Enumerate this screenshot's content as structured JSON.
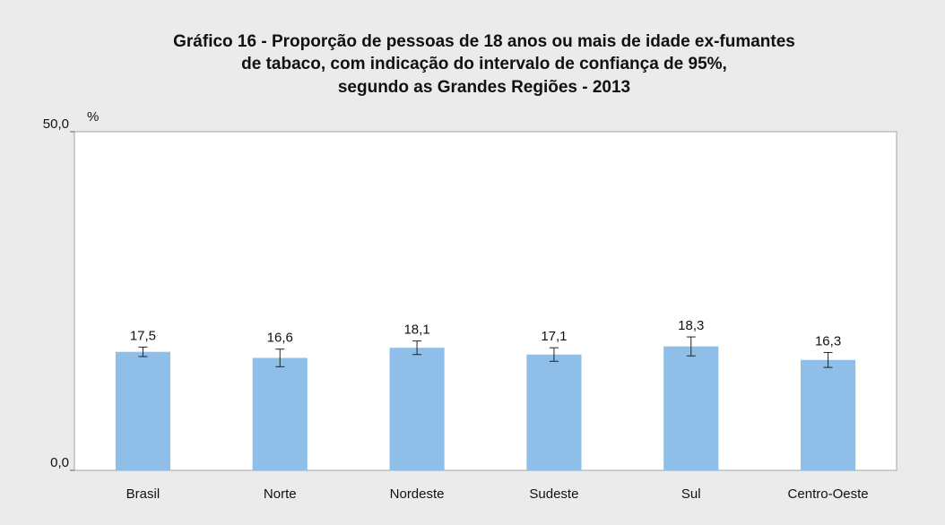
{
  "chart_data": {
    "type": "bar",
    "title": [
      "Gráfico 16 - Proporção de pessoas de 18 anos ou mais de idade ex-fumantes",
      "de tabaco, com indicação do intervalo de confiança de 95%,",
      "segundo as Grandes Regiões - 2013"
    ],
    "y_label": "%",
    "categories": [
      "Brasil",
      "Norte",
      "Nordeste",
      "Sudeste",
      "Sul",
      "Centro-Oeste"
    ],
    "values": [
      17.5,
      16.6,
      18.1,
      17.1,
      18.3,
      16.3
    ],
    "value_labels": [
      "17,5",
      "16,6",
      "18,1",
      "17,1",
      "18,3",
      "16,3"
    ],
    "errors": [
      0.7,
      1.3,
      1.0,
      1.0,
      1.4,
      1.1
    ],
    "color": "#8fbfe8",
    "ylim": [
      0,
      50
    ],
    "yticks": [
      {
        "value": 0,
        "label": "0,0"
      },
      {
        "value": 50,
        "label": "50,0"
      }
    ],
    "grid": false
  }
}
